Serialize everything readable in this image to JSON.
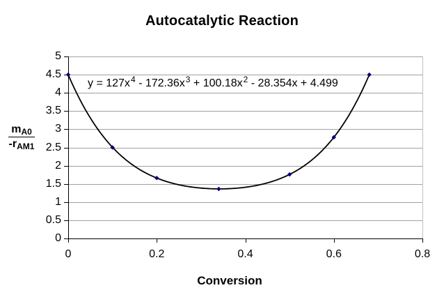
{
  "chart_data": {
    "type": "scatter",
    "title": "Autocatalytic Reaction",
    "xlabel": "Conversion",
    "ylabel": "mA0 / -rAM1",
    "ylabel_parts": {
      "num_main": "m",
      "num_sub": "A0",
      "den_main": "-r",
      "den_sub": "AM1"
    },
    "xlim": [
      0,
      0.8
    ],
    "ylim": [
      0,
      5
    ],
    "x_tick_step": 0.2,
    "y_tick_step": 0.5,
    "x_tick_labels": [
      "0",
      "0.2",
      "0.4",
      "0.6",
      "0.8"
    ],
    "y_tick_labels": [
      "0",
      "0.5",
      "1",
      "1.5",
      "2",
      "2.5",
      "3",
      "3.5",
      "4",
      "4.5",
      "5"
    ],
    "grid": "horizontal",
    "legend": "none",
    "points": [
      [
        0,
        4.5
      ],
      [
        0.1,
        2.5
      ],
      [
        0.2,
        1.66
      ],
      [
        0.34,
        1.36
      ],
      [
        0.5,
        1.76
      ],
      [
        0.6,
        2.78
      ],
      [
        0.68,
        4.5
      ]
    ],
    "trendline": {
      "kind": "polynomial",
      "degree": 4,
      "coefficients_desc": [
        127,
        -172.36,
        100.18,
        -28.354,
        4.499
      ],
      "domain": [
        0,
        0.68
      ]
    },
    "equation": "y = 127x^4 - 172.36x^3 + 100.18x^2 - 28.354x + 4.499",
    "equation_parts": [
      {
        "t": "y = 127x"
      },
      {
        "s": "4"
      },
      {
        "t": " - 172.36x"
      },
      {
        "s": "3"
      },
      {
        "t": " + 100.18x"
      },
      {
        "s": "2"
      },
      {
        "t": " - 28.354x + 4.499"
      }
    ],
    "colors": {
      "curve": "#000000",
      "marker": "#000080",
      "gridline": "#a0a0a0",
      "plot_border_right": "#c0c0c0",
      "axis": "#000000",
      "text": "#000000",
      "background": "#ffffff"
    }
  }
}
